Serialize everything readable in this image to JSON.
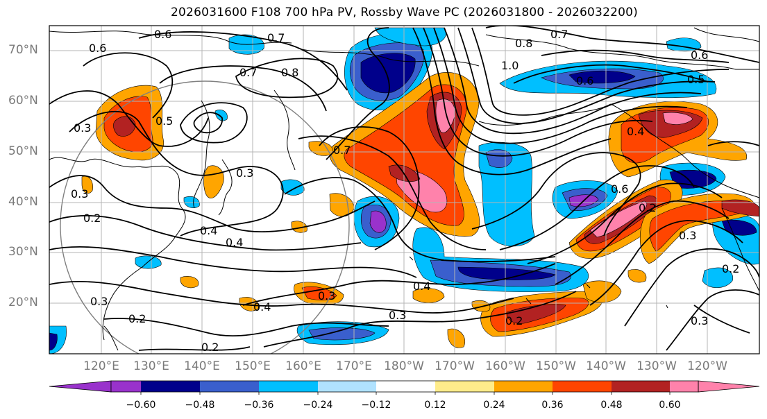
{
  "title": "2026031600 F108 700 hPa PV, Rossby Wave PC (2026031800 - 2026032200)",
  "lat_labels": [
    "70°N",
    "60°N",
    "50°N",
    "40°N",
    "30°N",
    "20°N"
  ],
  "lon_labels": [
    "120°E",
    "130°E",
    "140°E",
    "150°E",
    "160°E",
    "170°E",
    "180°W",
    "170°W",
    "160°W",
    "150°W",
    "140°W",
    "130°W",
    "120°W"
  ],
  "colorbar": {
    "ticks": [
      "−0.60",
      "−0.48",
      "−0.36",
      "−0.24",
      "−0.12",
      "0.12",
      "0.24",
      "0.36",
      "0.48",
      "0.60"
    ],
    "colors": [
      "#9932CC",
      "#00008B",
      "#3A5FCD",
      "#00BFFF",
      "#B0E2FF",
      "#FFFFFF",
      "#FFEC8B",
      "#FFA500",
      "#FF4500",
      "#B22222",
      "#FF82AB"
    ]
  },
  "contour_labels": [
    "0.7",
    "0.7",
    "0.8",
    "0.6",
    "0.7",
    "0.8",
    "0.6",
    "0.5",
    "0.6",
    "0.3",
    "0.5",
    "0.3",
    "0.7",
    "0.3",
    "0.2",
    "0.3",
    "0.4",
    "0.4",
    "0.4",
    "0.3",
    "0.4",
    "0.3",
    "0.2",
    "0.2",
    "0.2",
    "0.4",
    "0.6",
    "0.2",
    "0.3",
    "0.2",
    "0.3",
    "0.6",
    "1.0"
  ]
}
